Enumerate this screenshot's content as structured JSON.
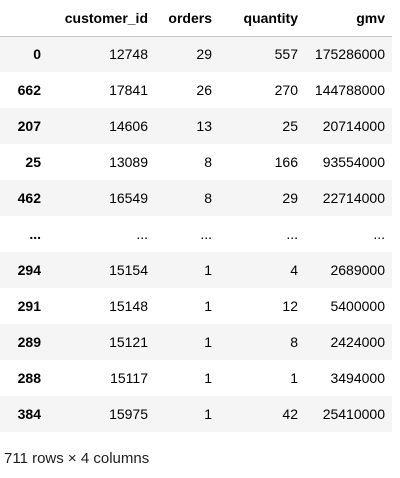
{
  "table": {
    "columns": [
      "",
      "customer_id",
      "orders",
      "quantity",
      "gmv"
    ],
    "rows": [
      [
        "0",
        "12748",
        "29",
        "557",
        "175286000"
      ],
      [
        "662",
        "17841",
        "26",
        "270",
        "144788000"
      ],
      [
        "207",
        "14606",
        "13",
        "25",
        "20714000"
      ],
      [
        "25",
        "13089",
        "8",
        "166",
        "93554000"
      ],
      [
        "462",
        "16549",
        "8",
        "29",
        "22714000"
      ],
      [
        "...",
        "...",
        "...",
        "...",
        "..."
      ],
      [
        "294",
        "15154",
        "1",
        "4",
        "2689000"
      ],
      [
        "291",
        "15148",
        "1",
        "12",
        "5400000"
      ],
      [
        "289",
        "15121",
        "1",
        "8",
        "2424000"
      ],
      [
        "288",
        "15117",
        "1",
        "1",
        "3494000"
      ],
      [
        "384",
        "15975",
        "1",
        "42",
        "25410000"
      ]
    ]
  },
  "footer": {
    "shape_text": "711 rows × 4 columns"
  }
}
